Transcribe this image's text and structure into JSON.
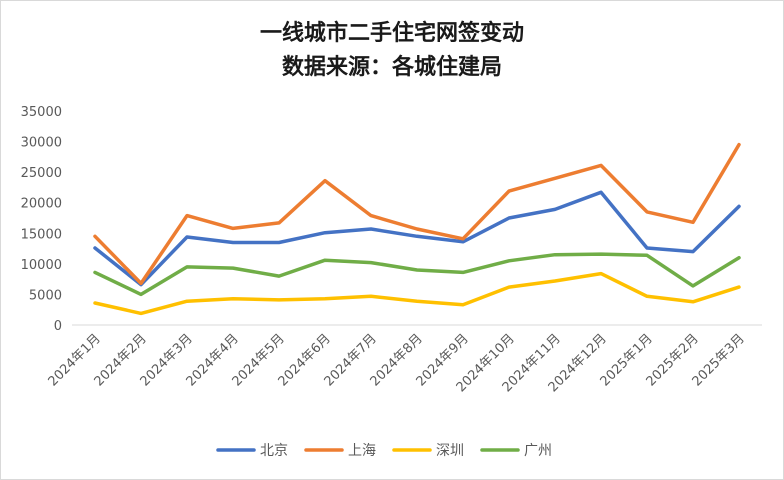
{
  "chart_data": {
    "type": "line",
    "title": "一线城市二手住宅网签变动",
    "subtitle": "数据来源：各城住建局",
    "categories": [
      "2024年1月",
      "2024年2月",
      "2024年3月",
      "2024年4月",
      "2024年5月",
      "2024年6月",
      "2024年7月",
      "2024年8月",
      "2024年9月",
      "2024年10月",
      "2024年11月",
      "2024年12月",
      "2025年1月",
      "2025年2月",
      "2025年3月"
    ],
    "ylim": [
      0,
      35000
    ],
    "yticks": [
      "0",
      "5000",
      "10000",
      "15000",
      "20000",
      "25000",
      "30000",
      "35000"
    ],
    "grid": false,
    "legend_position": "bottom",
    "series": [
      {
        "name": "北京",
        "color": "#4472C4",
        "values": [
          12600,
          6600,
          14400,
          13500,
          13500,
          15100,
          15700,
          14500,
          13600,
          17500,
          18900,
          21700,
          12600,
          12000,
          19400
        ]
      },
      {
        "name": "上海",
        "color": "#ED7D31",
        "values": [
          14500,
          6800,
          17900,
          15800,
          16700,
          23600,
          17900,
          15700,
          14100,
          21900,
          24000,
          26100,
          18500,
          16800,
          29500
        ]
      },
      {
        "name": "深圳",
        "color": "#FFC000",
        "values": [
          3600,
          1900,
          3900,
          4300,
          4100,
          4300,
          4700,
          3900,
          3300,
          6200,
          7200,
          8400,
          4700,
          3800,
          6200
        ]
      },
      {
        "name": "广州",
        "color": "#70AD47",
        "values": [
          8600,
          5000,
          9500,
          9300,
          8000,
          10600,
          10200,
          9000,
          8600,
          10500,
          11500,
          11600,
          11400,
          6400,
          11000
        ]
      }
    ]
  }
}
